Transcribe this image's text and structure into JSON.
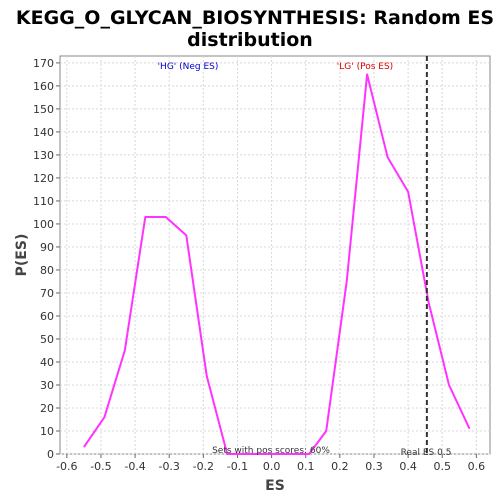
{
  "chart_data": {
    "type": "line",
    "title_line1": "KEGG_O_GLYCAN_BIOSYNTHESIS: Random ES",
    "title_line2": "distribution",
    "xlabel": "ES",
    "ylabel": "P(ES)",
    "xlim": [
      -0.62,
      0.64
    ],
    "ylim": [
      0,
      173
    ],
    "x_ticks": [
      -0.6,
      -0.5,
      -0.4,
      -0.3,
      -0.2,
      -0.1,
      0.0,
      0.1,
      0.2,
      0.3,
      0.4,
      0.5,
      0.6
    ],
    "y_ticks": [
      0,
      10,
      20,
      30,
      40,
      50,
      60,
      70,
      80,
      90,
      100,
      110,
      120,
      130,
      140,
      150,
      160,
      170
    ],
    "grid": true,
    "series": [
      {
        "color": "#ff33ff",
        "points": [
          [
            -0.55,
            3
          ],
          [
            -0.49,
            16
          ],
          [
            -0.43,
            45
          ],
          [
            -0.37,
            103
          ],
          [
            -0.31,
            103
          ],
          [
            -0.25,
            95
          ],
          [
            -0.19,
            34
          ],
          [
            -0.13,
            0
          ],
          [
            -0.07,
            0
          ],
          [
            -0.01,
            0
          ],
          [
            0.05,
            0
          ],
          [
            0.11,
            0
          ],
          [
            0.16,
            10
          ],
          [
            0.22,
            75
          ],
          [
            0.28,
            165
          ],
          [
            0.34,
            129
          ],
          [
            0.4,
            114
          ],
          [
            0.46,
            66
          ],
          [
            0.52,
            30
          ],
          [
            0.58,
            11
          ]
        ]
      }
    ],
    "real_es": 0.455,
    "annotations": {
      "neg_label": "'HG' (Neg ES)",
      "neg_color": "#0000cc",
      "pos_label": "'LG' (Pos ES)",
      "pos_color": "#dd0000",
      "pos_scores": "Sets with pos scores: 60%",
      "real_es_label": "Real ES 0.5"
    }
  }
}
